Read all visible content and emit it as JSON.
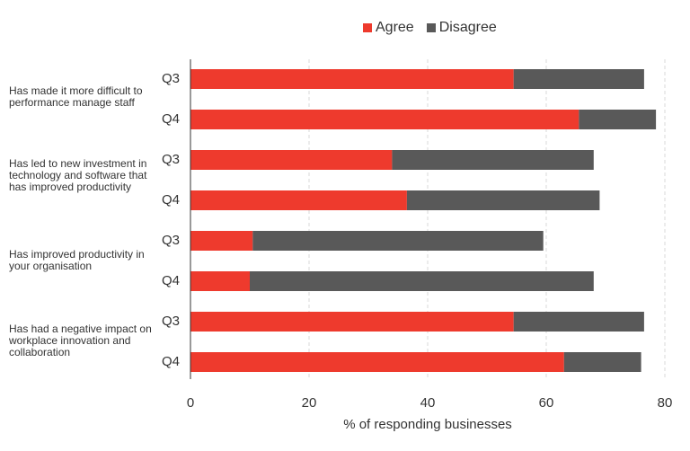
{
  "colors": {
    "agree": "#ee3a2d",
    "disagree": "#595959",
    "grid": "#d9d9d9",
    "axis": "#333333"
  },
  "chart_data": {
    "type": "bar",
    "orientation": "horizontal",
    "stacked": true,
    "title": "",
    "xlabel": "% of responding businesses",
    "ylabel": "",
    "xlim": [
      0,
      80
    ],
    "xticks": [
      0,
      20,
      40,
      60,
      80
    ],
    "grid": true,
    "legend": {
      "position": "top",
      "entries": [
        "Agree",
        "Disagree"
      ]
    },
    "groups": [
      "Has made it more difficult to performance manage staff",
      "Has led to new investment in technology and software that has improved productivity",
      "Has improved productivity in your organisation",
      "Has had a negative impact on workplace innovation and collaboration"
    ],
    "periods": [
      "Q3",
      "Q4"
    ],
    "series": [
      {
        "name": "Agree",
        "values": [
          54.5,
          65.5,
          34,
          36.5,
          10.5,
          10,
          54.5,
          63
        ]
      },
      {
        "name": "Disagree",
        "values": [
          22,
          13,
          34,
          32.5,
          49,
          58,
          22,
          13
        ]
      }
    ]
  }
}
